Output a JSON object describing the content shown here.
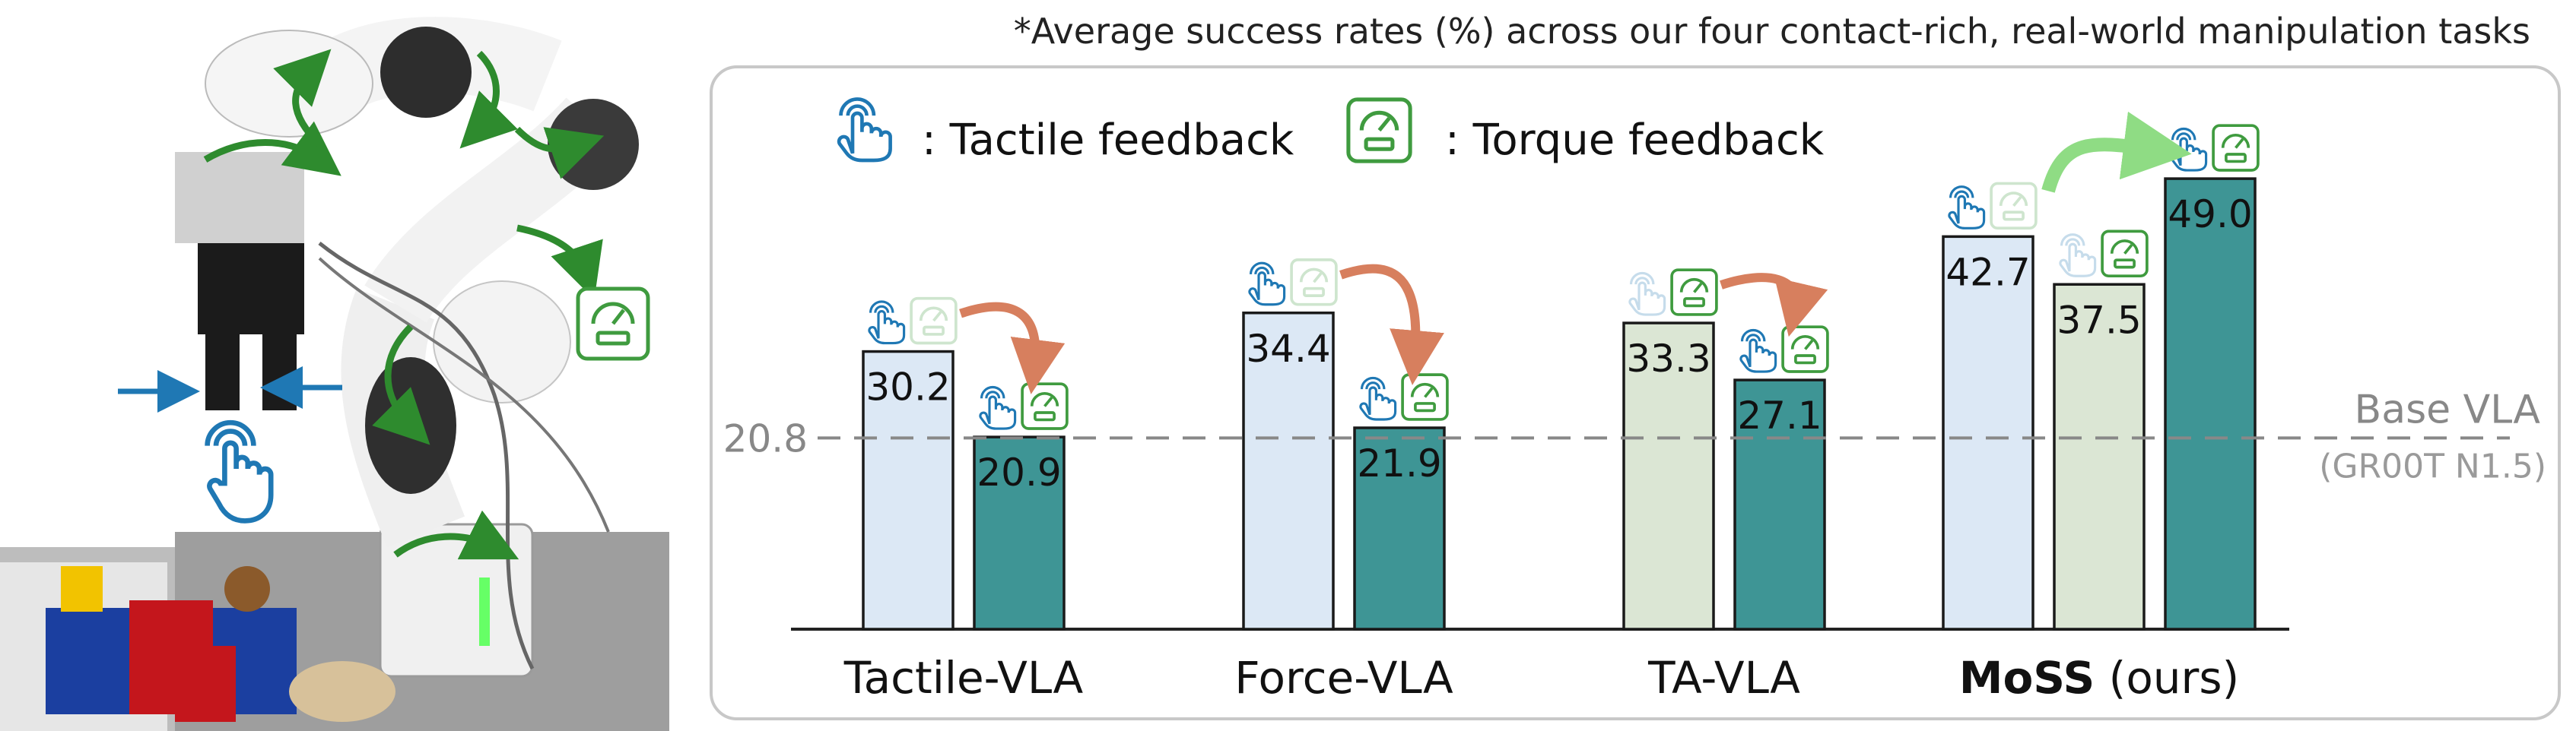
{
  "note": "*Average success rates (%) across our four contact-rich, real-world manipulation tasks",
  "legend": {
    "tactile_label": ":  Tactile feedback",
    "torque_label": ":  Torque feedback",
    "tactile_icon": "tactile-hand-icon",
    "torque_icon": "torque-gauge-icon"
  },
  "colors": {
    "tactile_only": "#dce8f5",
    "torque_only": "#dbe6d4",
    "combined": "#3e9595",
    "icon_blue": "#1f78b4",
    "icon_green": "#3f9b3f",
    "arrow_orange": "#d77f5e",
    "arrow_green": "#8fdc84",
    "baseline": "#888888"
  },
  "chart_data": {
    "type": "bar",
    "categories": [
      "Tactile-VLA",
      "Force-VLA",
      "TA-VLA",
      "MoSS"
    ],
    "category_suffix": [
      "",
      "",
      "",
      " (ours)"
    ],
    "groups": [
      {
        "bars": [
          {
            "value": 30.2,
            "kind": "tactile"
          },
          {
            "value": 20.9,
            "kind": "combined"
          }
        ]
      },
      {
        "bars": [
          {
            "value": 34.4,
            "kind": "tactile"
          },
          {
            "value": 21.9,
            "kind": "combined"
          }
        ]
      },
      {
        "bars": [
          {
            "value": 33.3,
            "kind": "torque"
          },
          {
            "value": 27.1,
            "kind": "combined"
          }
        ]
      },
      {
        "bars": [
          {
            "value": 42.7,
            "kind": "tactile"
          },
          {
            "value": 37.5,
            "kind": "torque"
          },
          {
            "value": 49.0,
            "kind": "combined"
          }
        ]
      }
    ],
    "baseline": {
      "value": 20.8,
      "label": "Base VLA",
      "sublabel": "(GR00T N1.5)",
      "tick": "20.8"
    },
    "ylim": [
      0,
      52
    ],
    "xlabel": "",
    "ylabel": "",
    "grid": false
  }
}
